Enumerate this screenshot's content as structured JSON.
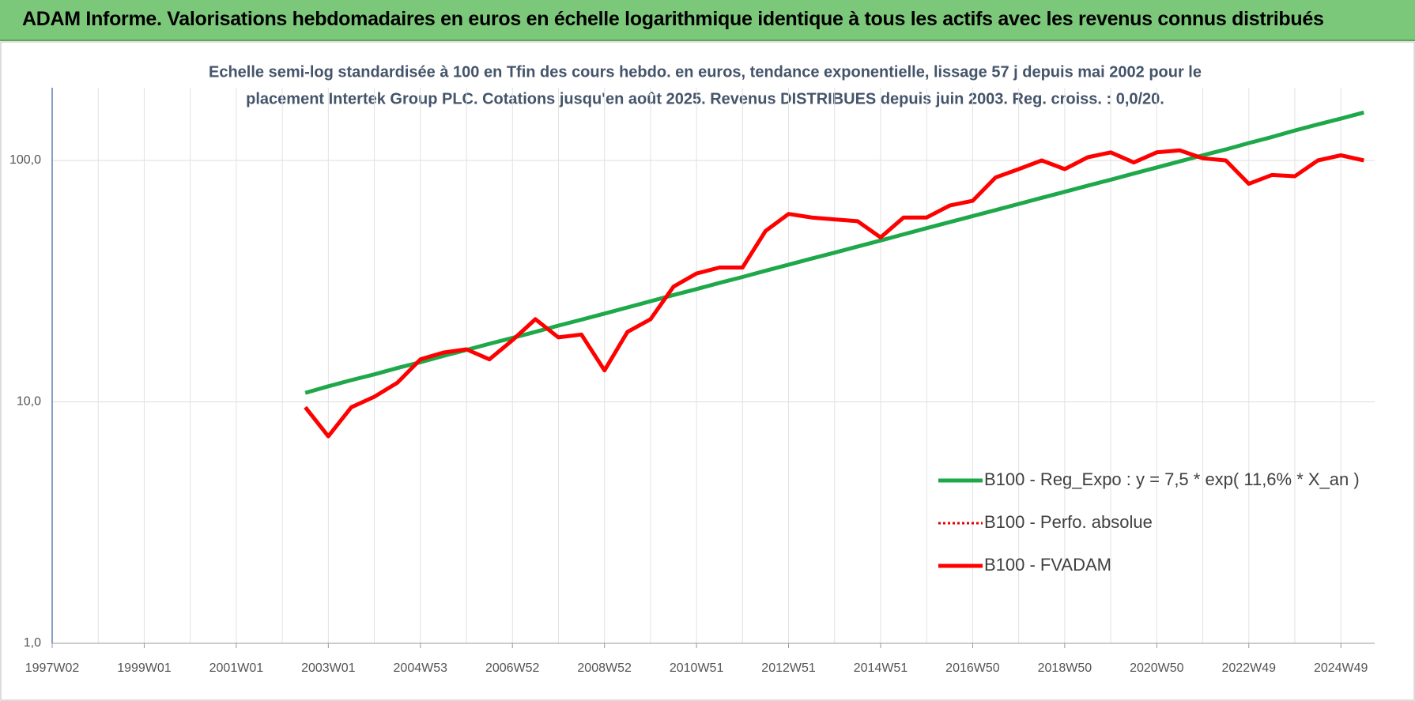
{
  "header": {
    "title": "ADAM Informe. Valorisations hebdomadaires en euros en échelle logarithmique identique à tous les actifs avec les revenus connus distribués"
  },
  "chart_data": {
    "type": "line",
    "title": "Echelle semi-log standardisée à 100 en Tfin des cours hebdo. en euros, tendance exponentielle, lissage 57 j depuis mai 2002 pour le",
    "subtitle": "placement Intertek Group PLC. Cotations jusqu'en août 2025. Revenus DISTRIBUES depuis juin 2003. Reg. croiss. : 0,0/20.",
    "categories": [
      "1997W02",
      null,
      null,
      null,
      "1999W01",
      null,
      null,
      null,
      "2001W01",
      null,
      null,
      null,
      "2003W01",
      null,
      null,
      null,
      "2004W53",
      null,
      null,
      null,
      "2006W52",
      null,
      null,
      null,
      "2008W52",
      null,
      null,
      null,
      "2010W51",
      null,
      null,
      null,
      "2012W51",
      null,
      null,
      null,
      "2014W51",
      null,
      null,
      null,
      "2016W50",
      null,
      null,
      null,
      "2018W50",
      null,
      null,
      null,
      "2020W50",
      null,
      null,
      null,
      "2022W49",
      null,
      null,
      null,
      "2024W49",
      null
    ],
    "series": [
      {
        "name": "B100 - Reg_Expo : y = 7,5 * exp( 11,6% *  X_an )",
        "color": "#1fa84a",
        "style": "solid",
        "values": [
          null,
          null,
          null,
          null,
          null,
          null,
          null,
          null,
          null,
          null,
          null,
          10.9,
          11.6,
          12.3,
          13.0,
          13.8,
          14.6,
          15.5,
          16.4,
          17.4,
          18.4,
          19.5,
          20.7,
          21.9,
          23.2,
          24.6,
          26.1,
          27.7,
          29.3,
          31.1,
          32.9,
          34.9,
          37.0,
          39.2,
          41.5,
          44.0,
          46.6,
          49.4,
          52.4,
          55.5,
          58.8,
          62.3,
          66.0,
          70.0,
          74.1,
          78.6,
          83.2,
          88.2,
          93.5,
          99.1,
          105,
          111,
          118,
          125,
          133,
          141,
          149,
          158
        ]
      },
      {
        "name": "B100 - Perfo. absolue",
        "color": "#e00000",
        "style": "dotted",
        "values": [
          null,
          null,
          null,
          null,
          null,
          null,
          null,
          null,
          null,
          null,
          null,
          null,
          null,
          null,
          null,
          null,
          null,
          null,
          null,
          null,
          null,
          null,
          null,
          null,
          null,
          null,
          null,
          null,
          null,
          null,
          null,
          null,
          null,
          null,
          null,
          null,
          null,
          null,
          null,
          null,
          null,
          null,
          null,
          null,
          null,
          null,
          null,
          null,
          null,
          null,
          null,
          null,
          null,
          null,
          null,
          null,
          null,
          null
        ]
      },
      {
        "name": "B100 - FVADAM",
        "color": "#ff0000",
        "style": "solid",
        "values": [
          null,
          null,
          null,
          null,
          null,
          null,
          null,
          null,
          null,
          null,
          null,
          9.5,
          7.2,
          9.5,
          10.5,
          12.0,
          15.0,
          16.0,
          16.5,
          15.0,
          18.0,
          22.0,
          18.5,
          19.0,
          13.5,
          19.5,
          22,
          30,
          34,
          36,
          36,
          51,
          60,
          58,
          57,
          56,
          48,
          58,
          58,
          65,
          68,
          85,
          92,
          100,
          92,
          103,
          108,
          98,
          108,
          110,
          102,
          100,
          80,
          87,
          86,
          100,
          105,
          100
        ]
      }
    ],
    "ylim": [
      1,
      200
    ],
    "log_y": true,
    "yticks": [
      {
        "value": 1,
        "label": "1,0"
      },
      {
        "value": 10,
        "label": "10,0"
      },
      {
        "value": 100,
        "label": "100,0"
      }
    ],
    "grid": true,
    "legend": "lower right"
  }
}
